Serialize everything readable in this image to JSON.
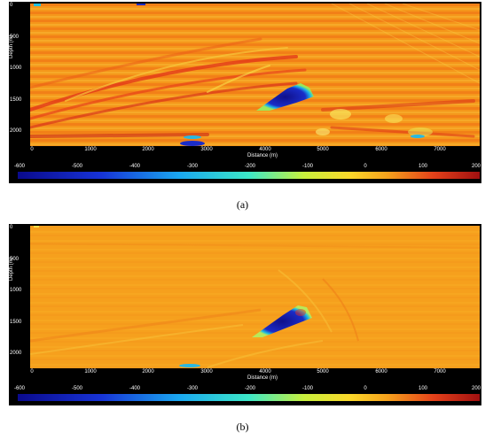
{
  "figure": {
    "panels": [
      {
        "id": "a",
        "caption": "(a)",
        "ylabel": "Depth (m)",
        "xlabel": "Distance (m)",
        "yticks": [
          "0",
          "500",
          "1000",
          "1500",
          "2000"
        ],
        "xticks": [
          "0",
          "1000",
          "2000",
          "3000",
          "4000",
          "5000",
          "6000",
          "7000"
        ],
        "colorbar_ticks": [
          "-600",
          "-500",
          "-400",
          "-300",
          "-200",
          "-100",
          "0",
          "100",
          "200"
        ]
      },
      {
        "id": "b",
        "caption": "(b)",
        "ylabel": "Depth (m)",
        "xlabel": "Distance (m)",
        "yticks": [
          "0",
          "500",
          "1000",
          "1500",
          "2000"
        ],
        "xticks": [
          "0",
          "1000",
          "2000",
          "3000",
          "4000",
          "5000",
          "6000",
          "7000"
        ],
        "colorbar_ticks": [
          "-600",
          "-500",
          "-400",
          "-300",
          "-200",
          "-100",
          "0",
          "100",
          "200"
        ]
      }
    ],
    "colors": {
      "background": "#f7a11c",
      "low": "#1919b0",
      "high": "#c81410",
      "frame": "#000000"
    }
  }
}
